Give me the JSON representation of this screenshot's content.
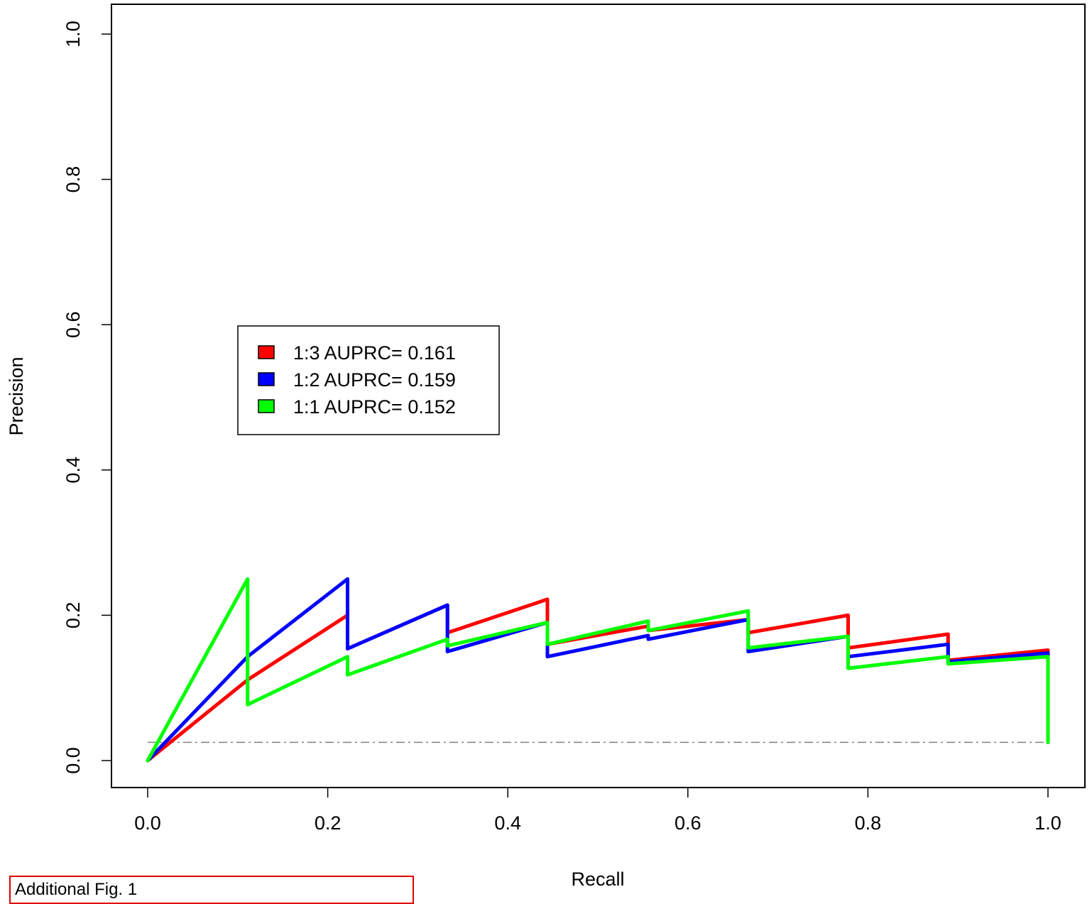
{
  "caption": "Additional Fig. 1",
  "chart_data": {
    "type": "line",
    "title": "",
    "xlabel": "Recall",
    "ylabel": "Precision",
    "xlim": [
      0,
      1
    ],
    "ylim": [
      0,
      1
    ],
    "xticks": [
      "0.0",
      "0.2",
      "0.4",
      "0.6",
      "0.8",
      "1.0"
    ],
    "yticks": [
      "0.0",
      "0.2",
      "0.4",
      "0.6",
      "0.8",
      "1.0"
    ],
    "grid": false,
    "legend_position": "center-left",
    "baseline": {
      "y": 0.025,
      "color": "#808080",
      "style": "dash-dot"
    },
    "series": [
      {
        "name": "1:3 AUPRC= 0.161",
        "color": "#ff0000",
        "x": [
          0.0,
          0.111,
          0.222,
          0.222,
          0.333,
          0.333,
          0.444,
          0.444,
          0.556,
          0.556,
          0.667,
          0.667,
          0.778,
          0.778,
          0.889,
          0.889,
          1.0,
          1.0
        ],
        "y": [
          0.0,
          0.111,
          0.2,
          0.154,
          0.214,
          0.176,
          0.222,
          0.16,
          0.185,
          0.179,
          0.194,
          0.176,
          0.2,
          0.155,
          0.174,
          0.138,
          0.152,
          0.025
        ]
      },
      {
        "name": "1:2 AUPRC= 0.159",
        "color": "#0000ff",
        "x": [
          0.0,
          0.111,
          0.111,
          0.222,
          0.222,
          0.333,
          0.333,
          0.444,
          0.444,
          0.556,
          0.556,
          0.667,
          0.667,
          0.778,
          0.778,
          0.889,
          0.889,
          1.0,
          1.0
        ],
        "y": [
          0.0,
          0.143,
          0.143,
          0.25,
          0.154,
          0.214,
          0.15,
          0.19,
          0.143,
          0.172,
          0.167,
          0.194,
          0.15,
          0.171,
          0.143,
          0.16,
          0.136,
          0.148,
          0.025
        ]
      },
      {
        "name": "1:1 AUPRC= 0.152",
        "color": "#00ff00",
        "x": [
          0.0,
          0.111,
          0.111,
          0.222,
          0.222,
          0.333,
          0.333,
          0.444,
          0.444,
          0.556,
          0.556,
          0.667,
          0.667,
          0.778,
          0.778,
          0.889,
          0.889,
          1.0,
          1.0
        ],
        "y": [
          0.0,
          0.25,
          0.077,
          0.143,
          0.118,
          0.167,
          0.158,
          0.19,
          0.16,
          0.192,
          0.179,
          0.206,
          0.155,
          0.171,
          0.127,
          0.143,
          0.133,
          0.143,
          0.025
        ]
      }
    ]
  }
}
